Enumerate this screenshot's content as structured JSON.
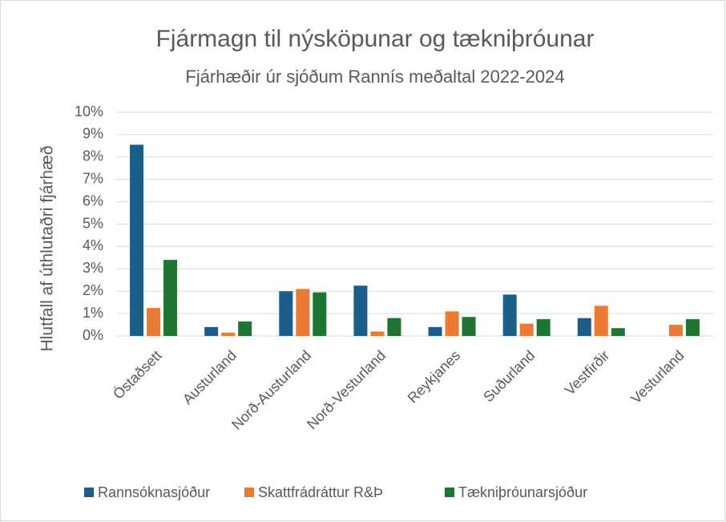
{
  "chart_data": {
    "type": "bar",
    "title": "Fjármagn til nýsköpunar og tækniþróunar",
    "subtitle": "Fjárhæðir úr sjóðum Rannís meðaltal 2022-2024",
    "y_label": "Hlutfall af úthlutaðri fjárhæð",
    "categories": [
      "Óstaðsett",
      "Austurland",
      "Norð-Austurland",
      "Norð-Vesturland",
      "Reykjanes",
      "Suðurland",
      "Vestfirðir",
      "Vesturland"
    ],
    "series": [
      {
        "name": "Rannsóknasjóður",
        "color": "#1b5e8a",
        "values": [
          8.55,
          0.4,
          2.0,
          2.25,
          0.4,
          1.85,
          0.8,
          0
        ]
      },
      {
        "name": "Skattfrádráttur R&Þ",
        "color": "#ed7a32",
        "values": [
          1.25,
          0.15,
          2.1,
          0.2,
          1.1,
          0.55,
          1.35,
          0.5
        ]
      },
      {
        "name": "Tækniþróunarsjóður",
        "color": "#1e7431",
        "values": [
          3.4,
          0.65,
          1.95,
          0.8,
          0.85,
          0.75,
          0.35,
          0.75
        ]
      }
    ],
    "ylim": [
      0,
      10
    ],
    "yticks": [
      {
        "value": 0,
        "label": "0%"
      },
      {
        "value": 1,
        "label": "1%"
      },
      {
        "value": 2,
        "label": "2%"
      },
      {
        "value": 3,
        "label": "3%"
      },
      {
        "value": 4,
        "label": "4%"
      },
      {
        "value": 5,
        "label": "5%"
      },
      {
        "value": 6,
        "label": "6%"
      },
      {
        "value": 7,
        "label": "7%"
      },
      {
        "value": 8,
        "label": "8%"
      },
      {
        "value": 9,
        "label": "9%"
      },
      {
        "value": 10,
        "label": "10%"
      }
    ],
    "grid": true,
    "legend": "bottom"
  }
}
